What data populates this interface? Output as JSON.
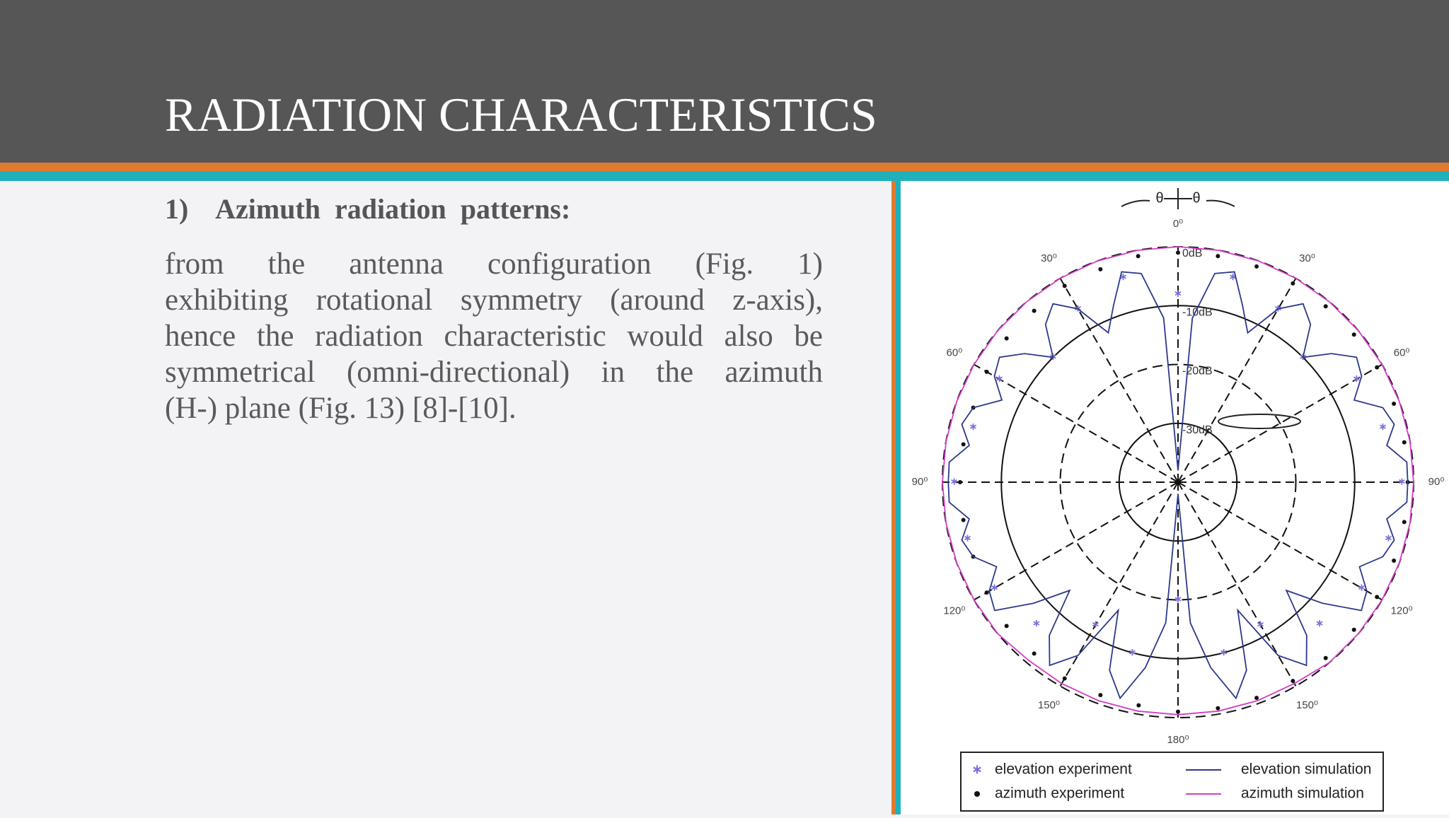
{
  "header": {
    "title": "RADIATION CHARACTERISTICS"
  },
  "section": {
    "heading": "1)    Azimuth  radiation  patterns:",
    "lines": [
      "from the antenna configuration (Fig. 1)",
      "exhibiting rotational symmetry (around z-axis),",
      "hence the radiation characteristic would also be",
      "symmetrical (omni-directional) in the azimuth",
      "(H-)  plane  (Fig. 13)  [8]-[10]."
    ]
  },
  "chart_data": {
    "type": "polar",
    "annotations": [
      "θ",
      "θ"
    ],
    "rlim": [
      -40,
      0
    ],
    "rticks": [
      {
        "value": 0,
        "label": "0dB"
      },
      {
        "value": -10,
        "label": "-10dB"
      },
      {
        "value": -20,
        "label": "-20dB"
      },
      {
        "value": -30,
        "label": "-30dB"
      }
    ],
    "thetaticks": [
      {
        "value": 0,
        "label": "0⁰"
      },
      {
        "value": 30,
        "label": "30⁰"
      },
      {
        "value": 60,
        "label": "60⁰"
      },
      {
        "value": 90,
        "label": "90⁰"
      },
      {
        "value": 120,
        "label": "120⁰"
      },
      {
        "value": 150,
        "label": "150⁰"
      },
      {
        "value": 180,
        "label": "180⁰"
      },
      {
        "value": 210,
        "label": "150⁰"
      },
      {
        "value": 240,
        "label": "120⁰"
      },
      {
        "value": 270,
        "label": "90⁰"
      },
      {
        "value": 300,
        "label": "60⁰"
      },
      {
        "value": 330,
        "label": "30⁰"
      }
    ],
    "series": [
      {
        "name": "elevation experiment",
        "color": "#7b6fd6",
        "marker": "asterisk",
        "x": [
          0,
          15,
          30,
          45,
          60,
          75,
          90,
          105,
          120,
          135,
          150,
          165,
          180,
          195,
          210,
          225,
          240,
          255,
          270,
          285,
          300,
          315,
          330,
          345
        ],
        "values": [
          -8,
          -4,
          -6,
          -10,
          -5,
          -4,
          -2,
          -3,
          -4,
          -6,
          -12,
          -10,
          -20,
          -10,
          -12,
          -6,
          -4,
          -3,
          -2,
          -4,
          -5,
          -10,
          -6,
          -4
        ]
      },
      {
        "name": "azimuth experiment",
        "color": "#111111",
        "marker": "dot",
        "x": [
          0,
          10,
          20,
          30,
          40,
          50,
          60,
          70,
          80,
          90,
          100,
          110,
          120,
          130,
          140,
          150,
          160,
          170,
          180,
          190,
          200,
          210,
          220,
          230,
          240,
          250,
          260,
          270,
          280,
          290,
          300,
          310,
          320,
          330,
          340,
          350
        ],
        "values": [
          -1,
          -1,
          -1,
          -1,
          -1,
          -1,
          -1,
          -1,
          -1,
          -1,
          -1,
          -1,
          -1,
          -1,
          -1,
          -1,
          -1,
          -1,
          -1,
          -1.5,
          -1.5,
          -1.5,
          -2,
          -2,
          -2.5,
          -3,
          -3,
          -3,
          -3,
          -3,
          -2.5,
          -2,
          -2,
          -1.5,
          -1.5,
          -1
        ]
      },
      {
        "name": "elevation simulation",
        "color": "#2b3a8c",
        "marker": "line",
        "x": [
          0,
          5,
          10,
          15,
          20,
          25,
          30,
          35,
          40,
          45,
          50,
          55,
          60,
          65,
          70,
          75,
          80,
          85,
          90,
          95,
          100,
          105,
          110,
          115,
          120,
          125,
          130,
          135,
          140,
          145,
          150,
          155,
          160,
          165,
          170,
          175,
          180,
          185,
          190,
          195,
          200,
          205,
          210,
          215,
          220,
          225,
          230,
          235,
          240,
          245,
          250,
          255,
          260,
          265,
          270,
          275,
          280,
          285,
          290,
          295,
          300,
          305,
          310,
          315,
          320,
          325,
          330,
          335,
          340,
          345,
          350,
          355,
          360
        ],
        "values": [
          -38,
          -12,
          -4,
          -3,
          -8,
          -12,
          -6,
          -3,
          -5,
          -10,
          -6,
          -3,
          -4,
          -7,
          -3,
          -2,
          -4,
          -1,
          -1,
          -1,
          -4,
          -2,
          -3,
          -6,
          -3,
          -2,
          -8,
          -14,
          -6,
          -2,
          -6,
          -16,
          -6,
          -2,
          -8,
          -16,
          -38,
          -16,
          -8,
          -2,
          -6,
          -16,
          -6,
          -2,
          -6,
          -14,
          -8,
          -2,
          -3,
          -6,
          -3,
          -2,
          -4,
          -1,
          -1,
          -1,
          -4,
          -2,
          -3,
          -7,
          -4,
          -3,
          -6,
          -10,
          -5,
          -3,
          -6,
          -12,
          -8,
          -3,
          -4,
          -12,
          -38
        ]
      },
      {
        "name": "azimuth simulation",
        "color": "#d23fc4",
        "marker": "line",
        "x": [
          0,
          10,
          20,
          30,
          40,
          50,
          60,
          70,
          80,
          90,
          100,
          110,
          120,
          130,
          140,
          150,
          160,
          170,
          180,
          190,
          200,
          210,
          220,
          230,
          240,
          250,
          260,
          270,
          280,
          290,
          300,
          310,
          320,
          330,
          340,
          350,
          360
        ],
        "values": [
          0,
          0,
          0,
          0,
          0,
          0,
          0,
          0,
          0,
          0,
          0,
          0,
          0,
          0,
          0,
          -0.5,
          -0.5,
          -0.5,
          -0.5,
          -0.5,
          -0.5,
          -0.5,
          -0.5,
          0,
          0,
          0,
          0,
          0,
          0,
          0,
          0,
          0,
          0,
          0,
          0,
          0,
          0
        ]
      }
    ]
  }
}
